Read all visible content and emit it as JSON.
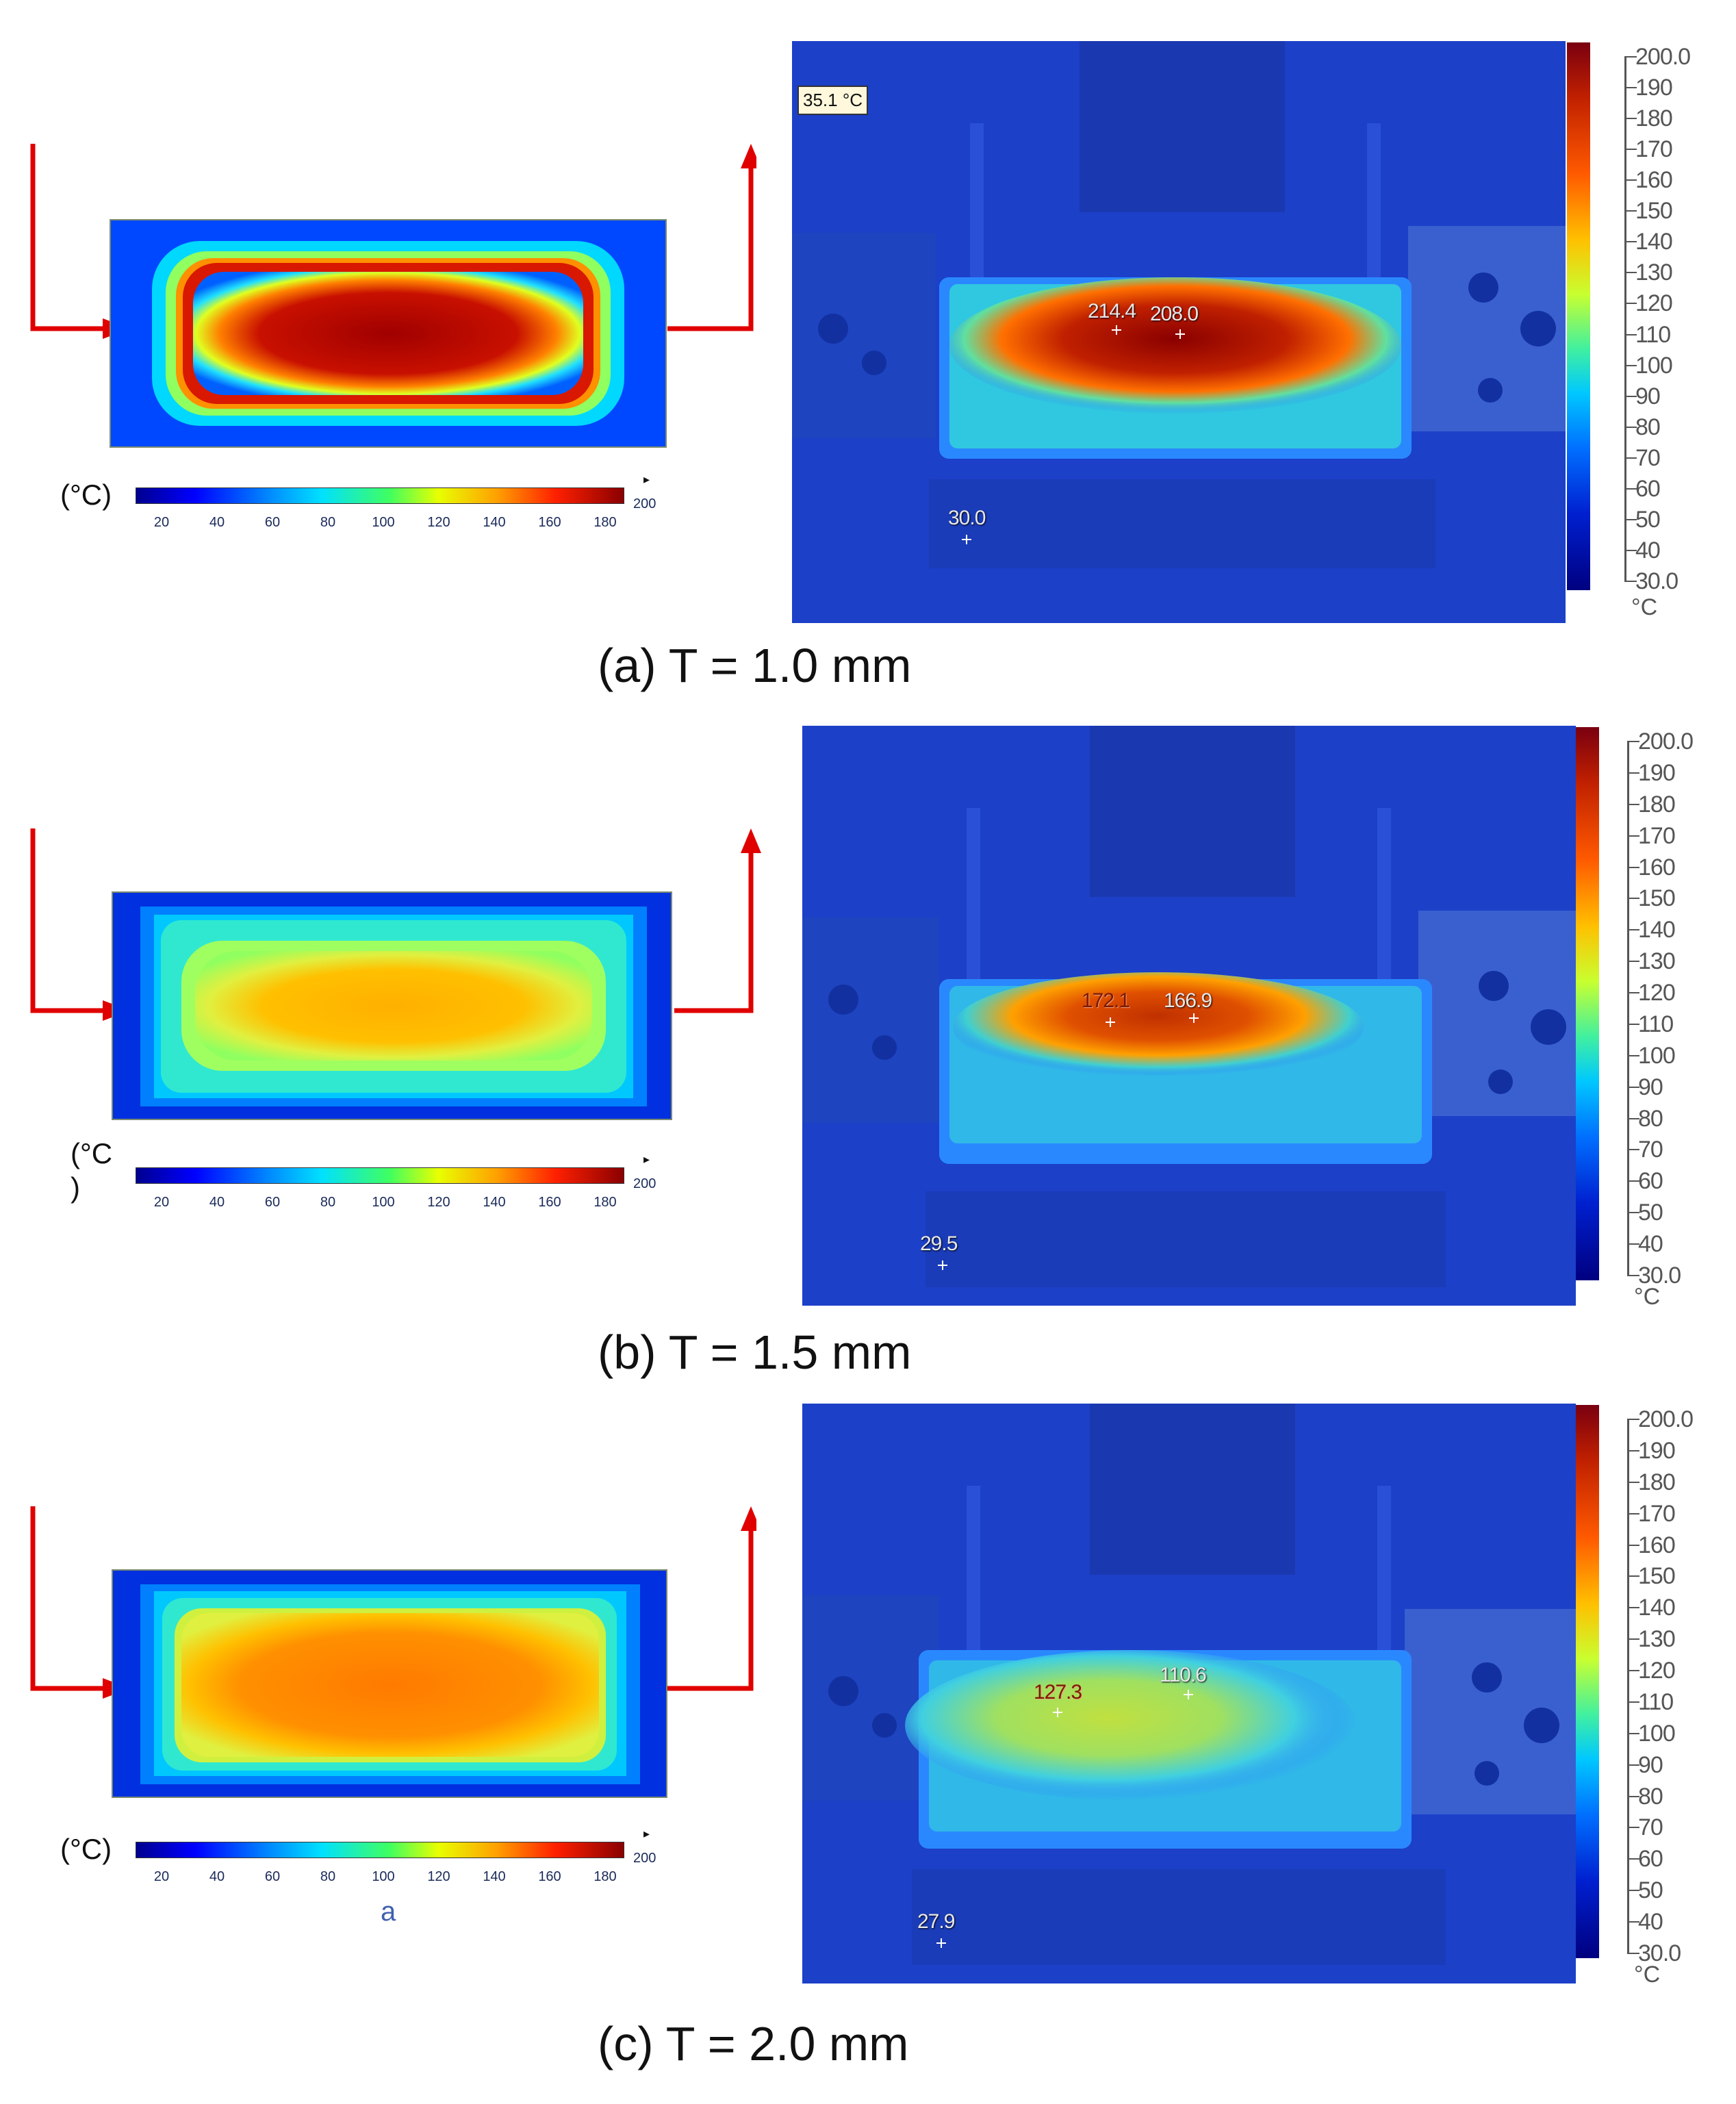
{
  "colors": {
    "arrow": "#e00000",
    "ir_background": "#1a3fc0"
  },
  "colorbar": {
    "ticks": [
      "20",
      "40",
      "60",
      "80",
      "100",
      "120",
      "140",
      "160",
      "180"
    ],
    "max": "200"
  },
  "ir_scale": {
    "labels": [
      "200.0",
      "190",
      "180",
      "170",
      "160",
      "150",
      "140",
      "130",
      "120",
      "110",
      "100",
      "90",
      "80",
      "70",
      "60",
      "50",
      "40",
      "30.0"
    ],
    "unit": "°C"
  },
  "panels": [
    {
      "caption": "(a) T = 1.0 mm",
      "unit_label": "(°C)",
      "hot_level": 0.95,
      "ir_tag": "35.1 °C",
      "ir_points": [
        {
          "value": "214.4",
          "dark": false
        },
        {
          "value": "208.0",
          "dark": false
        },
        {
          "value": "30.0",
          "dark": false
        }
      ]
    },
    {
      "caption": "(b) T = 1.5 mm",
      "unit_label": "(°C\n)",
      "hot_level": 0.62,
      "ir_tag": "",
      "ir_points": [
        {
          "value": "172.1",
          "dark": true
        },
        {
          "value": "166.9",
          "dark": false
        },
        {
          "value": "29.5",
          "dark": false
        }
      ]
    },
    {
      "caption": "(c) T = 2.0 mm",
      "unit_label": "(°C)",
      "hot_level": 0.72,
      "ir_tag": "",
      "ir_points": [
        {
          "value": "127.3",
          "dark": true
        },
        {
          "value": "110.6",
          "dark": false
        },
        {
          "value": "27.9",
          "dark": false
        }
      ]
    }
  ],
  "note_label": "a"
}
